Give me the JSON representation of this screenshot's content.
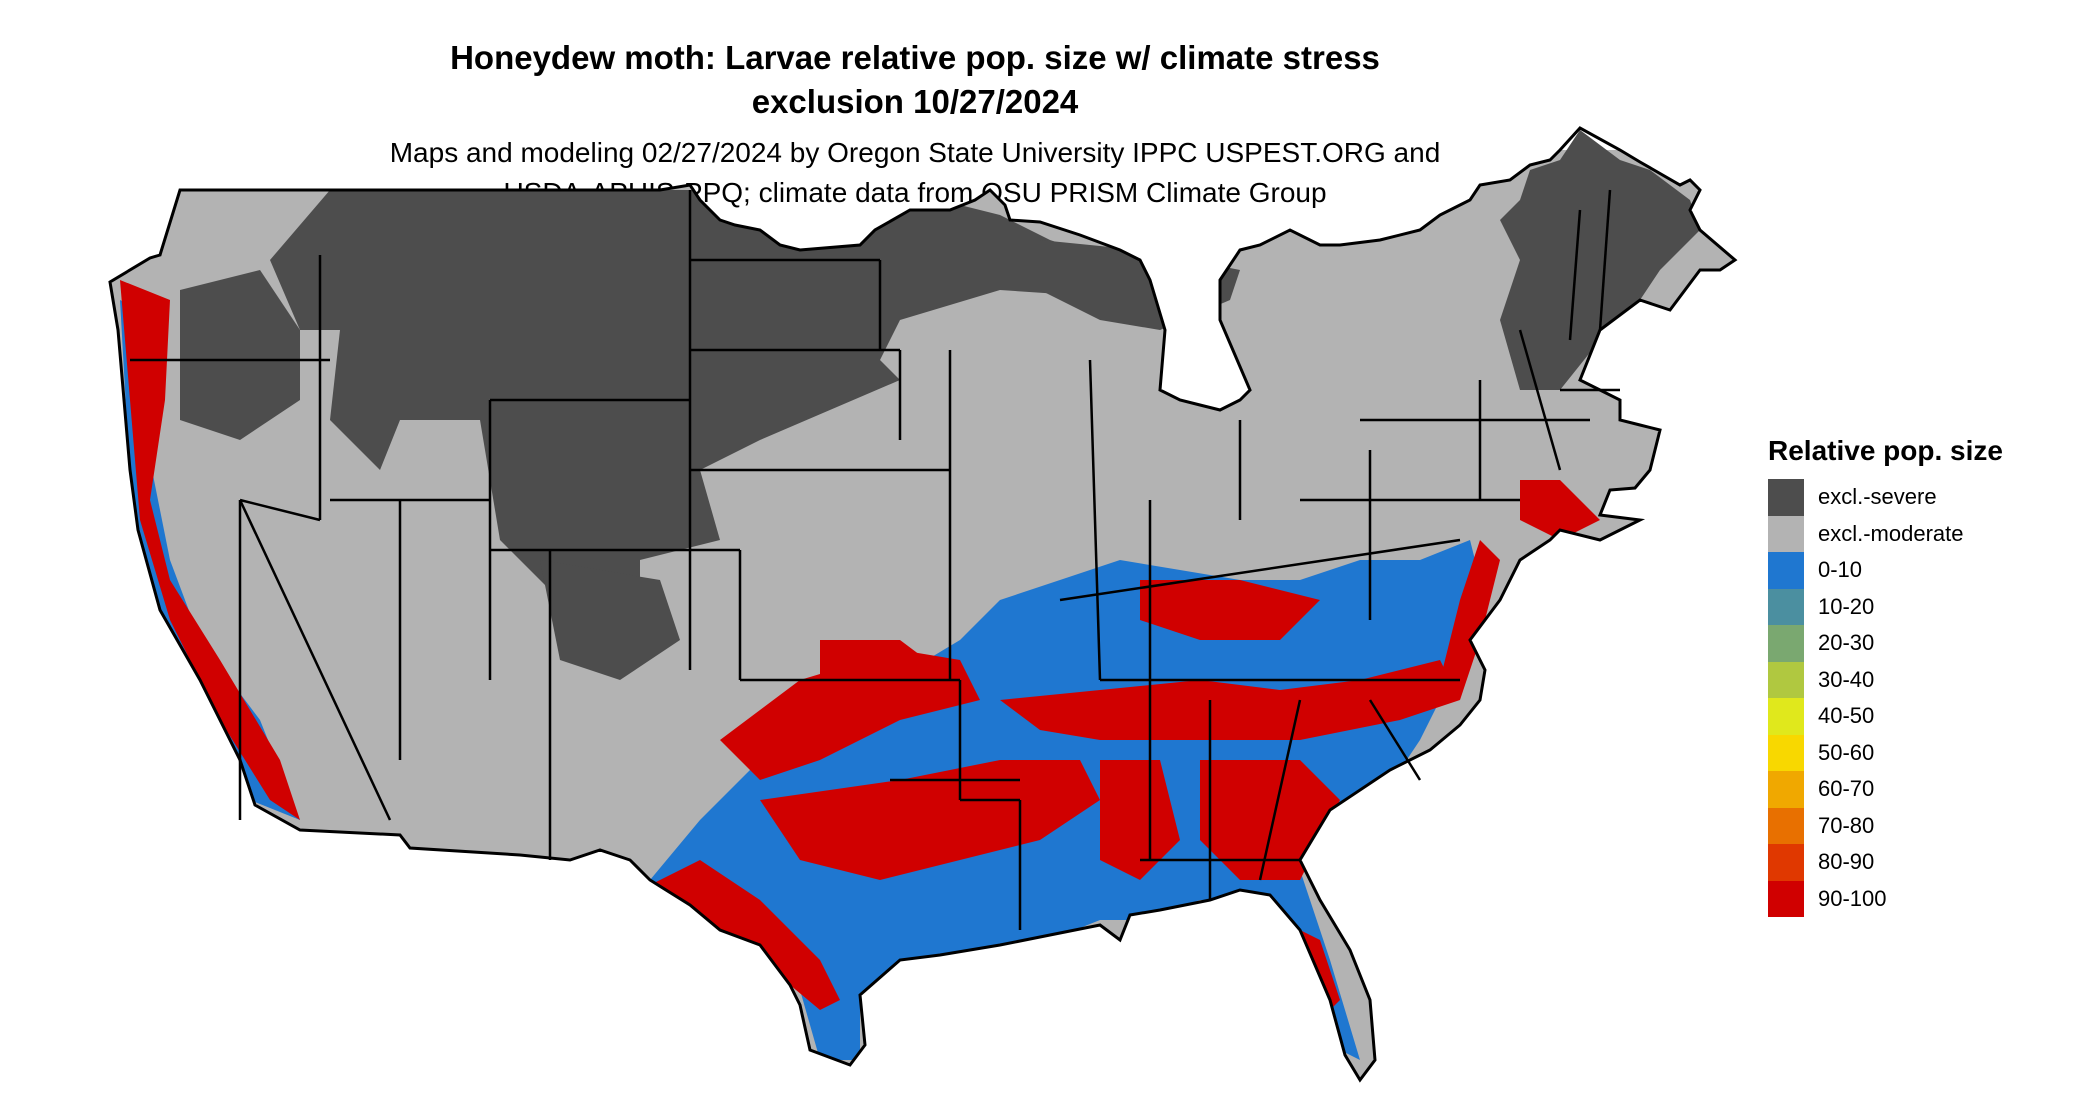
{
  "header": {
    "title_line1": "Honeydew moth: Larvae relative pop. size w/ climate stress",
    "title_line2": "exclusion 10/27/2024",
    "subtitle_line1": "Maps and modeling 02/27/2024 by Oregon State University IPPC USPEST.ORG and",
    "subtitle_line2": "USDA-APHIS-PPQ; climate data from OSU PRISM Climate Group"
  },
  "legend": {
    "title": "Relative pop. size",
    "items": [
      {
        "label": "excl.-severe",
        "color": "#4d4d4d"
      },
      {
        "label": "excl.-moderate",
        "color": "#b3b3b3"
      },
      {
        "label": "0-10",
        "color": "#1f77d0"
      },
      {
        "label": "10-20",
        "color": "#4b8fa0"
      },
      {
        "label": "20-30",
        "color": "#7aa870"
      },
      {
        "label": "30-40",
        "color": "#b0c840"
      },
      {
        "label": "40-50",
        "color": "#e0e81c"
      },
      {
        "label": "50-60",
        "color": "#f8d800"
      },
      {
        "label": "60-70",
        "color": "#f0a800"
      },
      {
        "label": "70-80",
        "color": "#e87000"
      },
      {
        "label": "80-90",
        "color": "#e03800"
      },
      {
        "label": "90-100",
        "color": "#d00000"
      }
    ]
  },
  "map_colors": {
    "severe": "#4d4d4d",
    "moderate": "#b3b3b3",
    "low": "#1f77d0",
    "high": "#d00000",
    "mid": "#f0c000",
    "water": "#ffffff",
    "border": "#000000"
  }
}
